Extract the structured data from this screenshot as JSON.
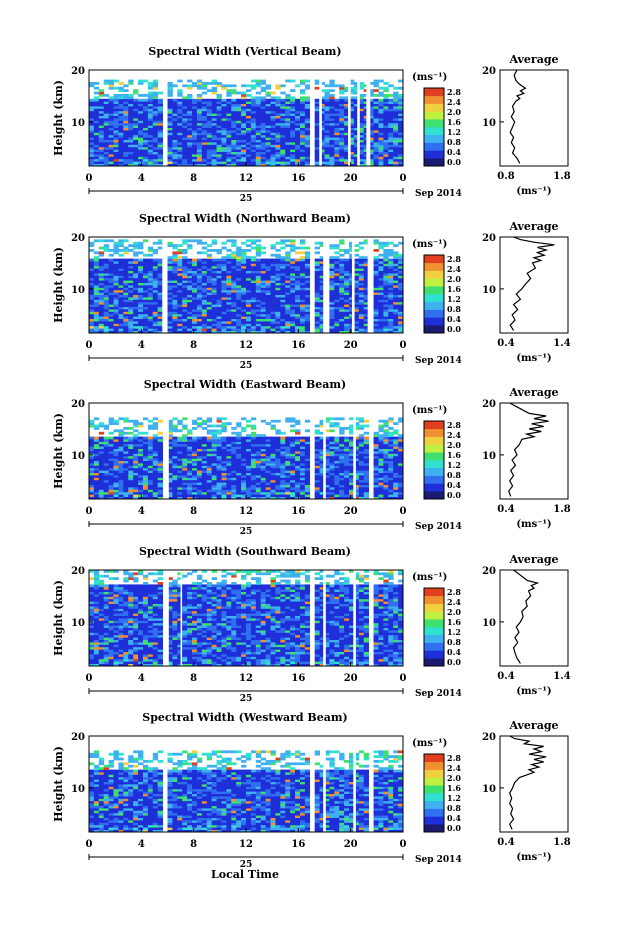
{
  "figure": {
    "xlabel": "Local Time",
    "date_label": "Sep 2014",
    "day_label": "25",
    "unit_label": "(ms⁻¹)",
    "avg_title": "Average",
    "avg_xlabel": "(ms⁻¹)"
  },
  "colormap": [
    "#1a1a6e",
    "#1f2fd8",
    "#2f6ff0",
    "#3fb0f0",
    "#30e0d0",
    "#40e070",
    "#c0f040",
    "#f0d040",
    "#f09030",
    "#e04020"
  ],
  "chart_data": [
    {
      "type": "heatmap",
      "title": "Spectral Width (Vertical Beam)",
      "ylabel": "Height (km)",
      "xticks": [
        "0",
        "4",
        "8",
        "12",
        "16",
        "20",
        "0"
      ],
      "xlim": [
        0,
        24
      ],
      "yticks": [
        "10",
        "20"
      ],
      "ylim": [
        1.5,
        20
      ],
      "colorbar_ticks": [
        "2.8",
        "2.4",
        "2.0",
        "1.6",
        "1.2",
        "0.8",
        "0.4",
        "0.0"
      ],
      "gaps": [
        [
          5.8,
          6.0
        ],
        [
          16.9,
          17.2
        ],
        [
          17.6,
          17.8
        ],
        [
          19.8,
          20.0
        ],
        [
          20.5,
          20.7
        ],
        [
          21.2,
          21.5
        ]
      ],
      "cloud_top": 14.5,
      "average": {
        "xticks": [
          "0.8",
          "1.8"
        ],
        "xlim": [
          0.6,
          1.8
        ],
        "yticks": [
          "10",
          "20"
        ],
        "profile": [
          [
            0.95,
            2
          ],
          [
            0.9,
            3
          ],
          [
            0.82,
            4
          ],
          [
            0.86,
            5
          ],
          [
            0.8,
            6
          ],
          [
            0.84,
            7
          ],
          [
            0.78,
            8
          ],
          [
            0.82,
            9
          ],
          [
            0.86,
            10
          ],
          [
            0.8,
            11
          ],
          [
            0.85,
            12
          ],
          [
            0.82,
            13
          ],
          [
            0.88,
            14
          ],
          [
            0.95,
            14.5
          ],
          [
            0.9,
            15
          ],
          [
            1.02,
            15.5
          ],
          [
            0.96,
            16
          ],
          [
            1.05,
            16.5
          ],
          [
            0.98,
            17
          ],
          [
            0.92,
            17.5
          ],
          [
            0.88,
            18
          ],
          [
            0.85,
            19
          ],
          [
            0.9,
            20
          ]
        ]
      }
    },
    {
      "type": "heatmap",
      "title": "Spectral Width (Northward Beam)",
      "ylabel": "Height (km)",
      "xticks": [
        "0",
        "4",
        "8",
        "12",
        "16",
        "20",
        "0"
      ],
      "xlim": [
        0,
        24
      ],
      "yticks": [
        "10",
        "20"
      ],
      "ylim": [
        1.5,
        20
      ],
      "colorbar_ticks": [
        "2.8",
        "2.4",
        "2.0",
        "1.6",
        "1.2",
        "0.8",
        "0.4",
        "0.0"
      ],
      "gaps": [
        [
          5.6,
          5.9
        ],
        [
          16.9,
          17.2
        ],
        [
          17.9,
          18.2
        ],
        [
          20.1,
          20.3
        ],
        [
          21.3,
          21.6
        ]
      ],
      "cloud_top": 16,
      "average": {
        "xticks": [
          "0.4",
          "1.4"
        ],
        "xlim": [
          0.4,
          1.4
        ],
        "yticks": [
          "10",
          "20"
        ],
        "profile": [
          [
            0.6,
            2
          ],
          [
            0.55,
            3
          ],
          [
            0.62,
            4
          ],
          [
            0.58,
            5
          ],
          [
            0.66,
            6
          ],
          [
            0.6,
            7
          ],
          [
            0.7,
            8
          ],
          [
            0.64,
            9
          ],
          [
            0.72,
            10
          ],
          [
            0.78,
            11
          ],
          [
            0.85,
            12
          ],
          [
            0.8,
            13
          ],
          [
            0.92,
            14
          ],
          [
            0.88,
            15
          ],
          [
            1.0,
            15.5
          ],
          [
            0.9,
            16
          ],
          [
            1.05,
            16.5
          ],
          [
            0.95,
            17
          ],
          [
            1.08,
            17.5
          ],
          [
            0.95,
            18
          ],
          [
            1.2,
            18.5
          ],
          [
            0.9,
            19
          ],
          [
            0.7,
            19.5
          ],
          [
            0.6,
            20
          ]
        ]
      }
    },
    {
      "type": "heatmap",
      "title": "Spectral Width (Eastward Beam)",
      "ylabel": "Height (km)",
      "xticks": [
        "0",
        "4",
        "8",
        "12",
        "16",
        "20",
        "0"
      ],
      "xlim": [
        0,
        24
      ],
      "yticks": [
        "10",
        "20"
      ],
      "ylim": [
        1.5,
        20
      ],
      "colorbar_ticks": [
        "2.8",
        "2.4",
        "2.0",
        "1.6",
        "1.2",
        "0.8",
        "0.4",
        "0.0"
      ],
      "gaps": [
        [
          5.8,
          6.1
        ],
        [
          16.9,
          17.2
        ],
        [
          17.9,
          18.1
        ],
        [
          20.2,
          20.4
        ],
        [
          21.4,
          21.7
        ]
      ],
      "cloud_top": 13.5,
      "average": {
        "xticks": [
          "0.4",
          "1.8"
        ],
        "xlim": [
          0.4,
          1.8
        ],
        "yticks": [
          "10",
          "20"
        ],
        "profile": [
          [
            0.62,
            2
          ],
          [
            0.58,
            3
          ],
          [
            0.66,
            4
          ],
          [
            0.6,
            5
          ],
          [
            0.68,
            6
          ],
          [
            0.62,
            7
          ],
          [
            0.72,
            8
          ],
          [
            0.65,
            9
          ],
          [
            0.75,
            10
          ],
          [
            0.7,
            11
          ],
          [
            0.8,
            12
          ],
          [
            0.85,
            13
          ],
          [
            1.1,
            13.5
          ],
          [
            0.95,
            14
          ],
          [
            1.25,
            14.5
          ],
          [
            1.0,
            15
          ],
          [
            1.3,
            15.5
          ],
          [
            1.05,
            16
          ],
          [
            1.4,
            16.5
          ],
          [
            1.1,
            17
          ],
          [
            1.35,
            17.5
          ],
          [
            1.0,
            18
          ],
          [
            0.8,
            19
          ],
          [
            0.6,
            20
          ]
        ]
      }
    },
    {
      "type": "heatmap",
      "title": "Spectral Width (Southward Beam)",
      "ylabel": "Height (km)",
      "xticks": [
        "0",
        "4",
        "8",
        "12",
        "16",
        "20",
        "0"
      ],
      "xlim": [
        0,
        24
      ],
      "yticks": [
        "10",
        "20"
      ],
      "ylim": [
        1.5,
        20
      ],
      "colorbar_ticks": [
        "2.8",
        "2.4",
        "2.0",
        "1.6",
        "1.2",
        "0.8",
        "0.4",
        "0.0"
      ],
      "gaps": [
        [
          5.8,
          6.1
        ],
        [
          7.0,
          7.1
        ],
        [
          16.9,
          17.2
        ],
        [
          17.9,
          18.1
        ],
        [
          20.2,
          20.4
        ],
        [
          21.4,
          21.7
        ]
      ],
      "cloud_top": 17,
      "average": {
        "xticks": [
          "0.4",
          "1.4"
        ],
        "xlim": [
          0.4,
          1.4
        ],
        "yticks": [
          "10",
          "20"
        ],
        "profile": [
          [
            0.7,
            2
          ],
          [
            0.65,
            3
          ],
          [
            0.62,
            4
          ],
          [
            0.6,
            5
          ],
          [
            0.66,
            6
          ],
          [
            0.62,
            7
          ],
          [
            0.68,
            8
          ],
          [
            0.64,
            9
          ],
          [
            0.7,
            10
          ],
          [
            0.74,
            11
          ],
          [
            0.72,
            12
          ],
          [
            0.8,
            13
          ],
          [
            0.78,
            14
          ],
          [
            0.85,
            15
          ],
          [
            0.82,
            16
          ],
          [
            0.9,
            16.5
          ],
          [
            0.86,
            17
          ],
          [
            0.95,
            17.5
          ],
          [
            0.8,
            18
          ],
          [
            0.7,
            19
          ],
          [
            0.6,
            20
          ]
        ]
      }
    },
    {
      "type": "heatmap",
      "title": "Spectral Width (Westward Beam)",
      "ylabel": "Height (km)",
      "xticks": [
        "0",
        "4",
        "8",
        "12",
        "16",
        "20",
        "0"
      ],
      "xlim": [
        0,
        24
      ],
      "yticks": [
        "10",
        "20"
      ],
      "ylim": [
        1.5,
        20
      ],
      "colorbar_ticks": [
        "2.8",
        "2.4",
        "2.0",
        "1.6",
        "1.2",
        "0.8",
        "0.4",
        "0.0"
      ],
      "gaps": [
        [
          5.8,
          6.0
        ],
        [
          16.9,
          17.2
        ],
        [
          17.9,
          18.1
        ],
        [
          20.2,
          20.4
        ],
        [
          21.4,
          21.7
        ]
      ],
      "cloud_top": 13.5,
      "average": {
        "xticks": [
          "0.4",
          "1.8"
        ],
        "xlim": [
          0.4,
          1.8
        ],
        "yticks": [
          "10",
          "20"
        ],
        "profile": [
          [
            0.65,
            2
          ],
          [
            0.6,
            3
          ],
          [
            0.68,
            4
          ],
          [
            0.62,
            5
          ],
          [
            0.66,
            6
          ],
          [
            0.6,
            7
          ],
          [
            0.64,
            8
          ],
          [
            0.6,
            9
          ],
          [
            0.66,
            10
          ],
          [
            0.7,
            11
          ],
          [
            0.8,
            12
          ],
          [
            0.95,
            12.5
          ],
          [
            1.1,
            13
          ],
          [
            1.0,
            13.5
          ],
          [
            1.2,
            14
          ],
          [
            1.05,
            14.5
          ],
          [
            1.3,
            15
          ],
          [
            1.1,
            15.5
          ],
          [
            1.35,
            16
          ],
          [
            1.0,
            16.5
          ],
          [
            1.25,
            17
          ],
          [
            1.1,
            17.5
          ],
          [
            1.3,
            18
          ],
          [
            0.9,
            18.5
          ],
          [
            1.0,
            19
          ],
          [
            0.7,
            19.5
          ],
          [
            0.6,
            20
          ]
        ]
      }
    }
  ]
}
